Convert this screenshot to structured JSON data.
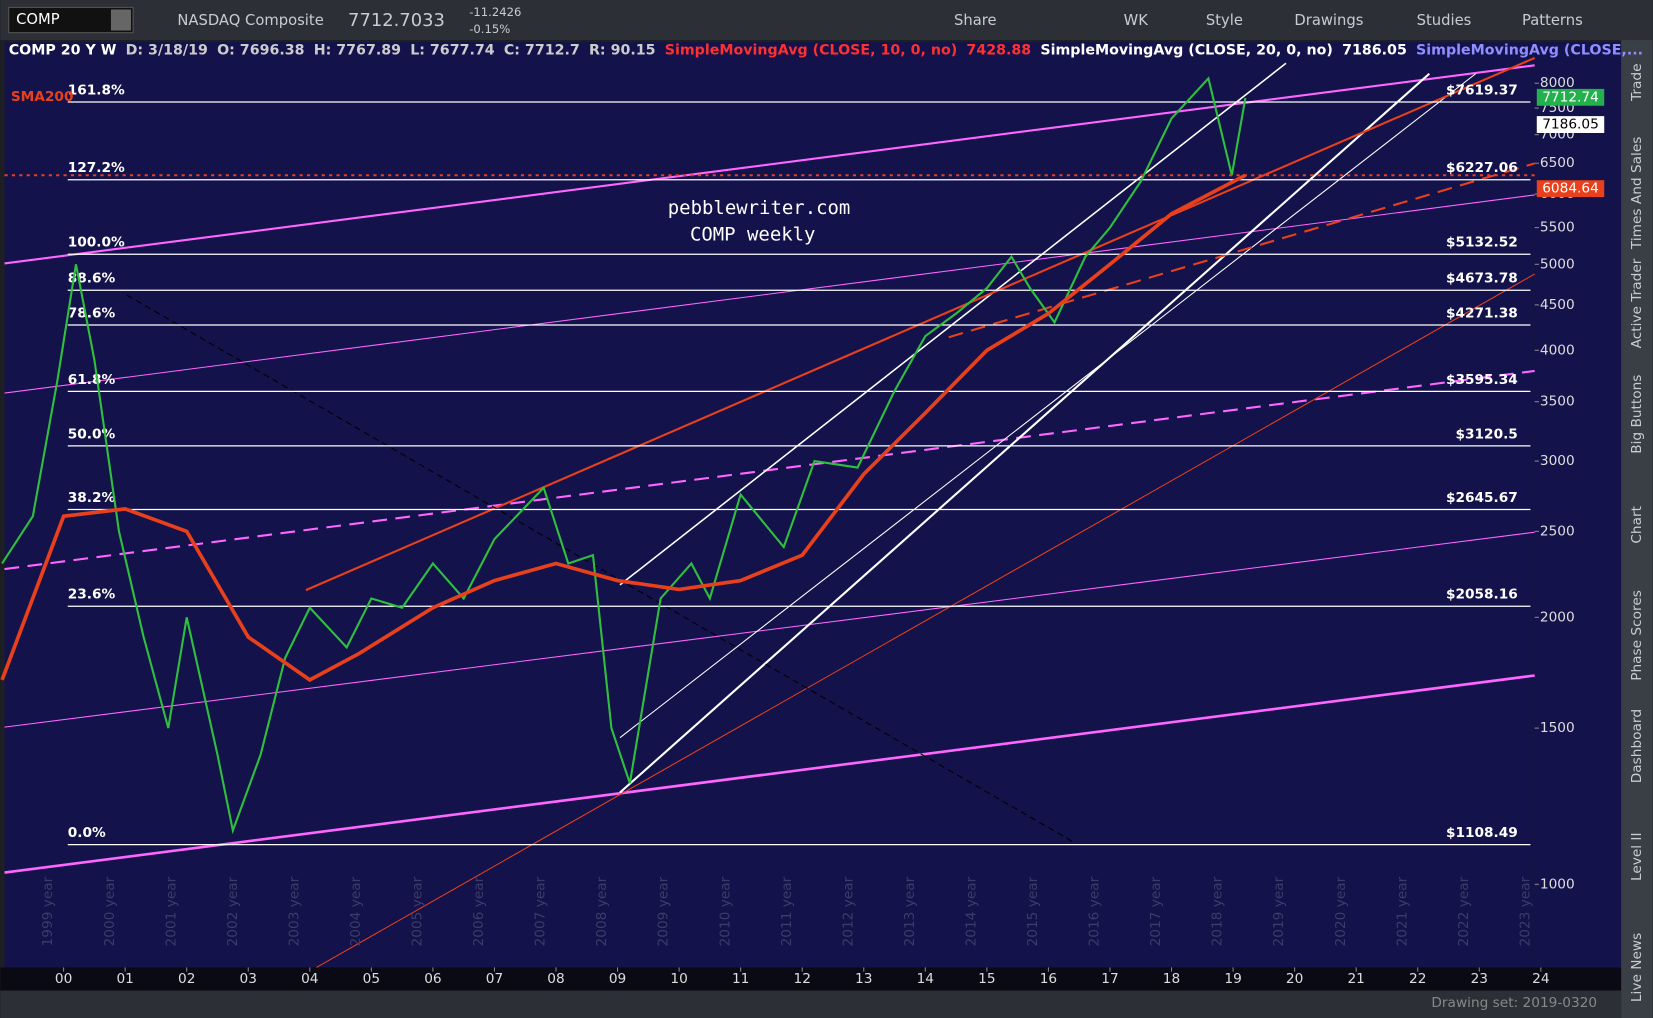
{
  "toolbar": {
    "symbol": "COMP",
    "name": "NASDAQ Composite",
    "last": "7712.7033",
    "change": "-11.2426",
    "change_pct": "-0.15%",
    "share": "Share",
    "period": "WK",
    "style": "Style",
    "drawings": "Drawings",
    "studies": "Studies",
    "patterns": "Patterns"
  },
  "header": {
    "chart_id": "COMP 20 Y W",
    "date": "D: 3/18/19",
    "open": "O: 7696.38",
    "high": "H: 7767.89",
    "low": "L: 7677.74",
    "close": "C: 7712.7",
    "range": "R: 90.15",
    "sma10": "SimpleMovingAvg (CLOSE, 10, 0, no)",
    "sma10_value": "7428.88",
    "sma20": "SimpleMovingAvg (CLOSE, 20, 0, no)",
    "sma20_value": "7186.05",
    "sma_more": "SimpleMovingAvg (CLOSE,..."
  },
  "side_tabs": [
    "Trade",
    "Times And Sales",
    "Active Trader",
    "Big Buttons",
    "Chart",
    "Phase Scores",
    "Dashboard",
    "Level II",
    "Live News"
  ],
  "footer": {
    "drawing_set": "Drawing set: 2019-0320"
  },
  "chart_data": {
    "type": "line",
    "log_scale": true,
    "watermark": [
      "pebblewriter.com",
      "COMP weekly"
    ],
    "sma_label": "SMA200",
    "xlim": [
      1999.04,
      2023.9
    ],
    "ylim": [
      806,
      8900
    ],
    "xticks": [
      {
        "value": 2000,
        "label": "00"
      },
      {
        "value": 2001,
        "label": "01"
      },
      {
        "value": 2002,
        "label": "02"
      },
      {
        "value": 2003,
        "label": "03"
      },
      {
        "value": 2004,
        "label": "04"
      },
      {
        "value": 2005,
        "label": "05"
      },
      {
        "value": 2006,
        "label": "06"
      },
      {
        "value": 2007,
        "label": "07"
      },
      {
        "value": 2008,
        "label": "08"
      },
      {
        "value": 2009,
        "label": "09"
      },
      {
        "value": 2010,
        "label": "10"
      },
      {
        "value": 2011,
        "label": "11"
      },
      {
        "value": 2012,
        "label": "12"
      },
      {
        "value": 2013,
        "label": "13"
      },
      {
        "value": 2014,
        "label": "14"
      },
      {
        "value": 2015,
        "label": "15"
      },
      {
        "value": 2016,
        "label": "16"
      },
      {
        "value": 2017,
        "label": "17"
      },
      {
        "value": 2018,
        "label": "18"
      },
      {
        "value": 2019,
        "label": "19"
      },
      {
        "value": 2020,
        "label": "20"
      },
      {
        "value": 2021,
        "label": "21"
      },
      {
        "value": 2022,
        "label": "22"
      },
      {
        "value": 2023,
        "label": "23"
      },
      {
        "value": 2024,
        "label": "24"
      }
    ],
    "year_labels": [
      "1999 year",
      "2000 year",
      "2001 year",
      "2002 year",
      "2003 year",
      "2004 year",
      "2005 year",
      "2006 year",
      "2007 year",
      "2008 year",
      "2009 year",
      "2010 year",
      "2011 year",
      "2012 year",
      "2013 year",
      "2014 year",
      "2015 year",
      "2016 year",
      "2017 year",
      "2018 year",
      "2019 year",
      "2020 year",
      "2021 year",
      "2022 year",
      "2023 year"
    ],
    "yticks": [
      1000,
      1500,
      2000,
      2500,
      3000,
      3500,
      4000,
      4500,
      5000,
      5500,
      6000,
      6500,
      7000,
      7500,
      8000
    ],
    "fib_levels": {
      "labels": [
        "161.8%",
        "127.2%",
        "100.0%",
        "88.6%",
        "78.6%",
        "61.8%",
        "50.0%",
        "38.2%",
        "23.6%",
        "0.0%"
      ],
      "values": [
        7619.37,
        6227.06,
        5132.52,
        4673.78,
        4271.38,
        3595.34,
        3120.5,
        2645.67,
        2058.16,
        1108.49
      ],
      "value_labels": [
        "$7619.37",
        "$6227.06",
        "$5132.52",
        "$4673.78",
        "$4271.38",
        "$3595.34",
        "$3120.5",
        "$2645.67",
        "$2058.16",
        "$1108.49"
      ]
    },
    "price_tags": {
      "values": [
        7712.74,
        7186.05,
        6084.64
      ],
      "colors": [
        "#22b14c",
        "#ffffff",
        "#e8401c"
      ]
    },
    "series": [
      {
        "name": "COMP",
        "color": "#2fbf3f",
        "x": [
          1999.0,
          1999.5,
          1999.9,
          2000.2,
          2000.5,
          2000.9,
          2001.3,
          2001.7,
          2002.0,
          2002.5,
          2002.75,
          2003.2,
          2003.6,
          2004.0,
          2004.6,
          2005.0,
          2005.5,
          2006.0,
          2006.5,
          2007.0,
          2007.8,
          2008.2,
          2008.6,
          2008.9,
          2009.2,
          2009.7,
          2010.2,
          2010.5,
          2011.0,
          2011.7,
          2012.2,
          2012.9,
          2013.5,
          2014.0,
          2014.5,
          2015.0,
          2015.4,
          2015.7,
          2016.1,
          2016.6,
          2017.0,
          2017.5,
          2018.0,
          2018.6,
          2018.98,
          2019.2
        ],
        "values": [
          2300,
          2600,
          3700,
          5000,
          3900,
          2500,
          1900,
          1500,
          2000,
          1400,
          1150,
          1400,
          1800,
          2050,
          1850,
          2100,
          2050,
          2300,
          2100,
          2450,
          2800,
          2300,
          2350,
          1500,
          1300,
          2100,
          2300,
          2100,
          2750,
          2400,
          3000,
          2950,
          3600,
          4150,
          4400,
          4700,
          5100,
          4700,
          4300,
          5100,
          5500,
          6200,
          7300,
          8100,
          6300,
          7700
        ]
      },
      {
        "name": "SMA200",
        "color": "#e8401c",
        "x": [
          1999.0,
          2000.0,
          2001.0,
          2002.0,
          2003.0,
          2004.0,
          2004.8,
          2006.0,
          2007.0,
          2008.0,
          2009.0,
          2010.0,
          2011.0,
          2012.0,
          2013.0,
          2014.0,
          2015.0,
          2016.0,
          2017.0,
          2018.0,
          2019.2
        ],
        "values": [
          1700,
          2600,
          2650,
          2500,
          1900,
          1700,
          1820,
          2050,
          2200,
          2300,
          2200,
          2150,
          2200,
          2350,
          2900,
          3400,
          4000,
          4400,
          5000,
          5700,
          6300
        ]
      }
    ]
  }
}
